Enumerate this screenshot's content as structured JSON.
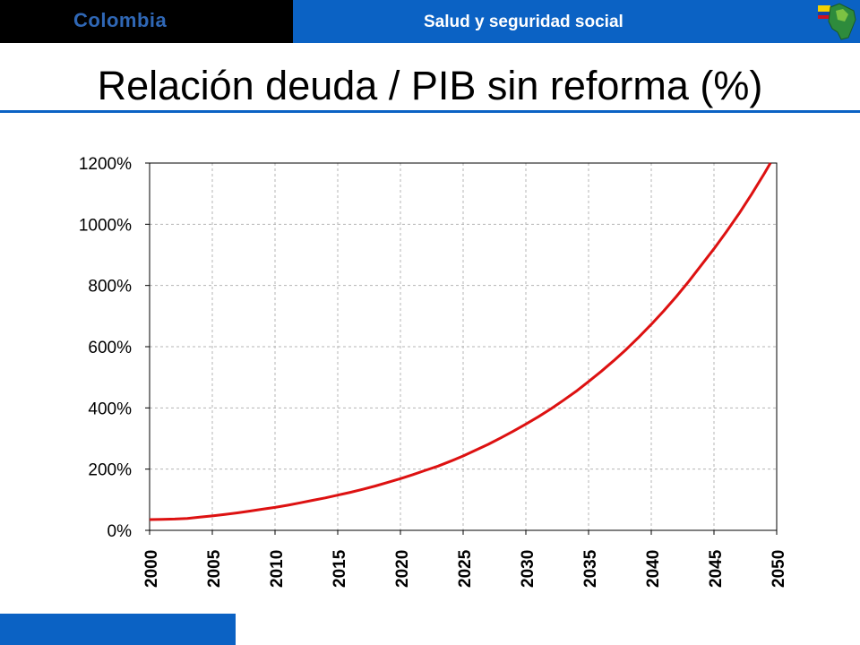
{
  "header": {
    "brand": "Colombia",
    "section": "Salud y seguridad social",
    "logo_icon": "colombia-map-flag-icon"
  },
  "title": "Relación deuda / PIB sin reforma (%)",
  "colors": {
    "header_blue": "#0b62c4",
    "header_black": "#000000",
    "brand_text": "#2f67b5",
    "line": "#dd1111",
    "grid": "#b4b4b4"
  },
  "chart_data": {
    "type": "line",
    "title": "Relación deuda / PIB sin reforma (%)",
    "xlabel": "",
    "ylabel": "",
    "xlim": [
      2000,
      2050
    ],
    "ylim": [
      0,
      1200
    ],
    "x_ticks": [
      "2000",
      "2005",
      "2010",
      "2015",
      "2020",
      "2025",
      "2030",
      "2035",
      "2040",
      "2045",
      "2050"
    ],
    "y_ticks": [
      {
        "value": 0,
        "label": "0%"
      },
      {
        "value": 200,
        "label": "200%"
      },
      {
        "value": 400,
        "label": "400%"
      },
      {
        "value": 600,
        "label": "600%"
      },
      {
        "value": 800,
        "label": "800%"
      },
      {
        "value": 1000,
        "label": "1000%"
      },
      {
        "value": 1200,
        "label": "1200%"
      }
    ],
    "grid": true,
    "legend": "none",
    "series": [
      {
        "x": [
          2000,
          2001,
          2002,
          2003,
          2004,
          2005,
          2006,
          2007,
          2008,
          2009,
          2010,
          2011,
          2012,
          2013,
          2014,
          2015,
          2016,
          2017,
          2018,
          2019,
          2020,
          2021,
          2022,
          2023,
          2024,
          2025,
          2026,
          2027,
          2028,
          2029,
          2030,
          2031,
          2032,
          2033,
          2034,
          2035,
          2036,
          2037,
          2038,
          2039,
          2040,
          2041,
          2042,
          2043,
          2044,
          2045,
          2046,
          2047,
          2048,
          2049,
          2050
        ],
        "values": [
          35,
          36,
          37,
          39,
          43,
          47,
          52,
          57,
          63,
          69,
          75,
          82,
          90,
          98,
          106,
          115,
          124,
          134,
          145,
          157,
          169,
          182,
          196,
          210,
          226,
          243,
          262,
          281,
          302,
          324,
          347,
          371,
          397,
          425,
          454,
          486,
          519,
          554,
          591,
          631,
          673,
          717,
          764,
          814,
          867,
          920,
          976,
          1035,
          1098,
          1165,
          1235
        ]
      }
    ]
  }
}
